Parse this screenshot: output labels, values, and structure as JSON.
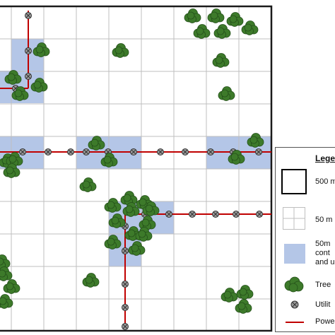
{
  "legend": {
    "title": "Lege",
    "items": [
      {
        "id": "cell-500m",
        "label": "500 m"
      },
      {
        "id": "cell-50m",
        "label": "50 m"
      },
      {
        "id": "contaminated",
        "label": "50m\ncont\nand u"
      },
      {
        "id": "tree",
        "label": "Tree"
      },
      {
        "id": "utility-pole",
        "label": "Utilit"
      },
      {
        "id": "power-line",
        "label": "Powe"
      }
    ]
  },
  "colors": {
    "grid_line": "#bfbfbf",
    "border": "#1a1a1a",
    "highlight_fill": "#b4c6e7",
    "tree_fill": "#3d7a2a",
    "tree_stroke": "#24501a",
    "power_line": "#c00000",
    "pole_fill": "#9a9a9a",
    "pole_stroke": "#333333"
  }
}
